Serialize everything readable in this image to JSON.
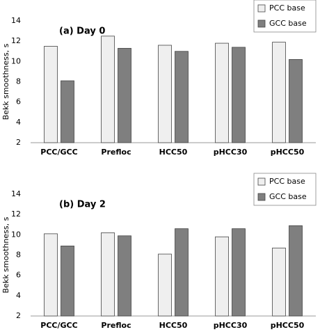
{
  "chart_data": [
    {
      "type": "bar",
      "annotation": "(a) Day 0",
      "y_label": "Bekk smoothness, s",
      "categories": [
        "PCC/GCC",
        "Prefloc",
        "HCC50",
        "pHCC30",
        "pHCC50"
      ],
      "series": [
        {
          "name": "PCC base",
          "color": "#efefef",
          "values": [
            11.5,
            12.5,
            11.6,
            11.8,
            11.9
          ]
        },
        {
          "name": "GCC base",
          "color": "#7f7f7f",
          "values": [
            8.1,
            11.3,
            11.0,
            11.4,
            10.2
          ]
        }
      ],
      "ylim": [
        2,
        14
      ],
      "yticks": [
        2,
        4,
        6,
        8,
        10,
        12,
        14
      ],
      "legend": "upper right"
    },
    {
      "type": "bar",
      "annotation": "(b) Day 2",
      "y_label": "Bekk smoothness, s",
      "categories": [
        "PCC/GCC",
        "Prefloc",
        "HCC50",
        "pHCC30",
        "pHCC50"
      ],
      "series": [
        {
          "name": "PCC base",
          "color": "#efefef",
          "values": [
            10.1,
            10.2,
            8.1,
            9.8,
            8.7
          ]
        },
        {
          "name": "GCC base",
          "color": "#7f7f7f",
          "values": [
            8.9,
            9.9,
            10.6,
            10.6,
            10.9
          ]
        }
      ],
      "ylim": [
        2,
        14
      ],
      "yticks": [
        2,
        4,
        6,
        8,
        10,
        12,
        14
      ],
      "legend": "upper right"
    }
  ]
}
